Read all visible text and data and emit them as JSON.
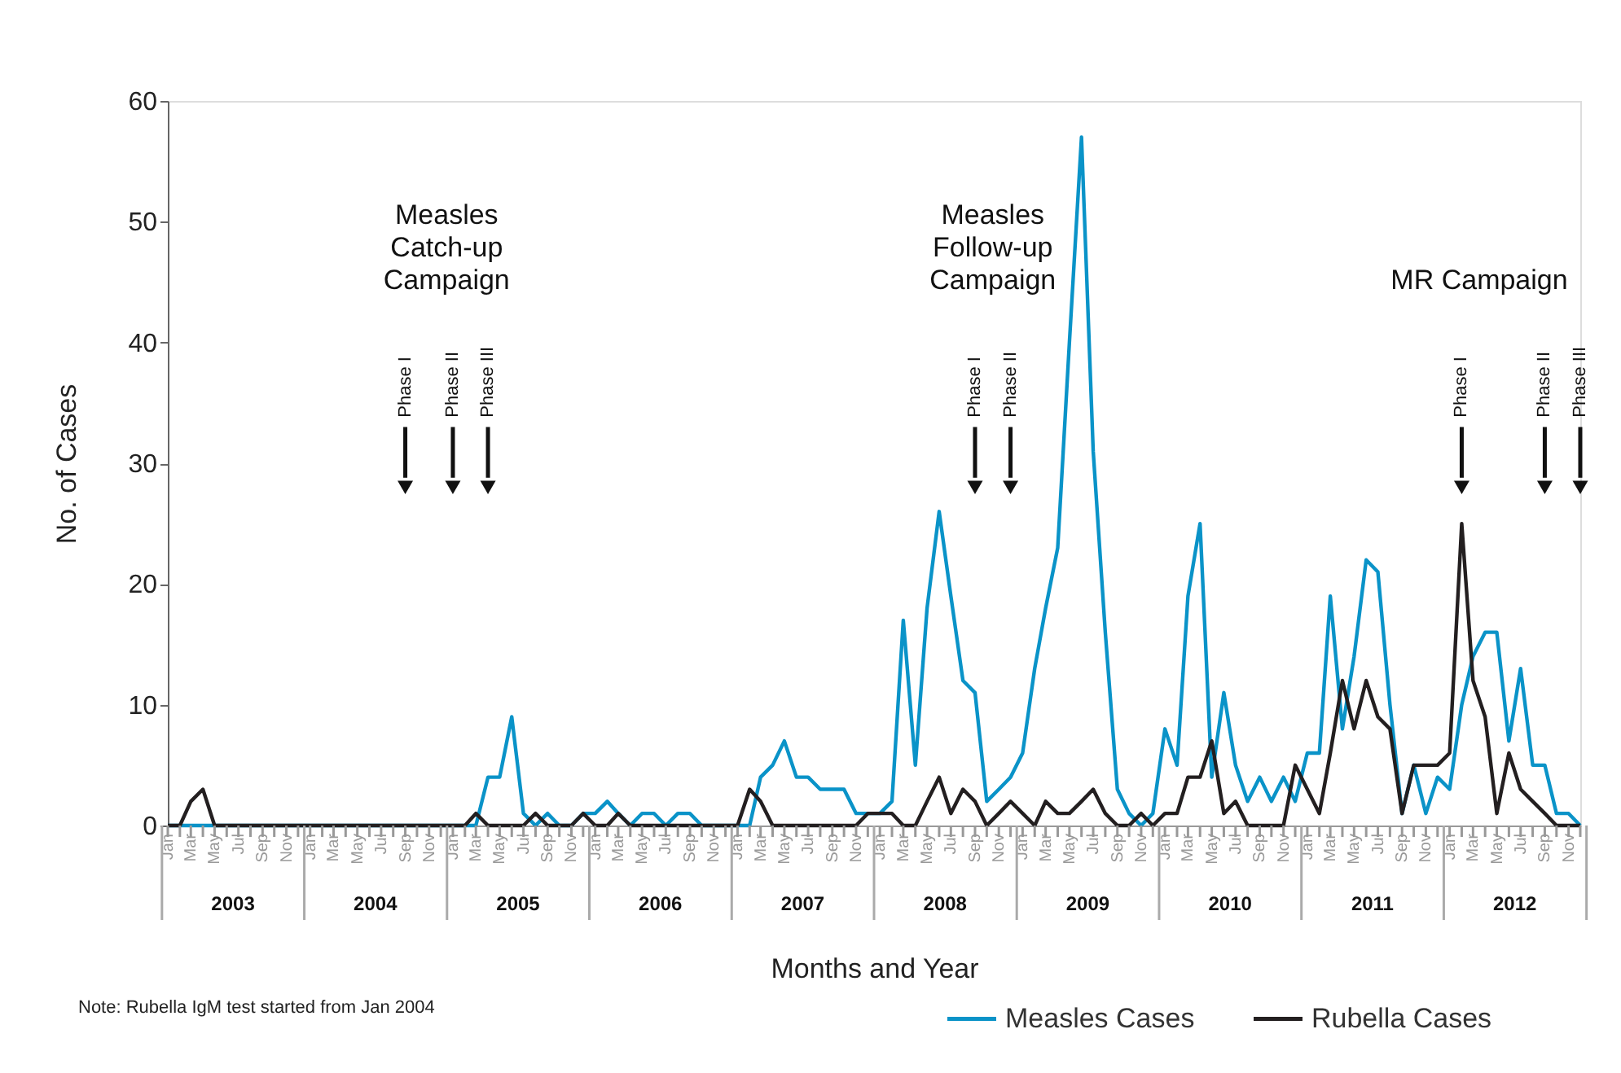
{
  "chart_data": {
    "type": "line",
    "xlabel": "Months and Year",
    "ylabel": "No. of Cases",
    "x": [
      "2003-01",
      "2003-02",
      "2003-03",
      "2003-04",
      "2003-05",
      "2003-06",
      "2003-07",
      "2003-08",
      "2003-09",
      "2003-10",
      "2003-11",
      "2003-12",
      "2004-01",
      "2004-02",
      "2004-03",
      "2004-04",
      "2004-05",
      "2004-06",
      "2004-07",
      "2004-08",
      "2004-09",
      "2004-10",
      "2004-11",
      "2004-12",
      "2005-01",
      "2005-02",
      "2005-03",
      "2005-04",
      "2005-05",
      "2005-06",
      "2005-07",
      "2005-08",
      "2005-09",
      "2005-10",
      "2005-11",
      "2005-12",
      "2006-01",
      "2006-02",
      "2006-03",
      "2006-04",
      "2006-05",
      "2006-06",
      "2006-07",
      "2006-08",
      "2006-09",
      "2006-10",
      "2006-11",
      "2006-12",
      "2007-01",
      "2007-02",
      "2007-03",
      "2007-04",
      "2007-05",
      "2007-06",
      "2007-07",
      "2007-08",
      "2007-09",
      "2007-10",
      "2007-11",
      "2007-12",
      "2008-01",
      "2008-02",
      "2008-03",
      "2008-04",
      "2008-05",
      "2008-06",
      "2008-07",
      "2008-08",
      "2008-09",
      "2008-10",
      "2008-11",
      "2008-12",
      "2009-01",
      "2009-02",
      "2009-03",
      "2009-04",
      "2009-05",
      "2009-06",
      "2009-07",
      "2009-08",
      "2009-09",
      "2009-10",
      "2009-11",
      "2009-12",
      "2010-01",
      "2010-02",
      "2010-03",
      "2010-04",
      "2010-05",
      "2010-06",
      "2010-07",
      "2010-08",
      "2010-09",
      "2010-10",
      "2010-11",
      "2010-12",
      "2011-01",
      "2011-02",
      "2011-03",
      "2011-04",
      "2011-05",
      "2011-06",
      "2011-07",
      "2011-08",
      "2011-09",
      "2011-10",
      "2011-11",
      "2011-12",
      "2012-01",
      "2012-02",
      "2012-03",
      "2012-04",
      "2012-05",
      "2012-06",
      "2012-07",
      "2012-08",
      "2012-09",
      "2012-10",
      "2012-11",
      "2012-12"
    ],
    "series": [
      {
        "name": "Measles Cases",
        "color": "#0a93c8",
        "values": [
          0,
          0,
          0,
          0,
          0,
          0,
          0,
          0,
          0,
          0,
          0,
          0,
          0,
          0,
          0,
          0,
          0,
          0,
          0,
          0,
          0,
          0,
          0,
          0,
          0,
          0,
          0,
          4,
          4,
          9,
          1,
          0,
          1,
          0,
          0,
          1,
          1,
          2,
          1,
          0,
          1,
          1,
          0,
          1,
          1,
          0,
          0,
          0,
          0,
          0,
          4,
          5,
          7,
          4,
          4,
          3,
          3,
          3,
          1,
          1,
          1,
          2,
          17,
          5,
          18,
          26,
          19,
          12,
          11,
          2,
          3,
          4,
          6,
          13,
          18,
          23,
          40,
          57,
          31,
          16,
          3,
          1,
          0,
          1,
          8,
          5,
          19,
          25,
          4,
          11,
          5,
          2,
          4,
          2,
          4,
          2,
          6,
          6,
          19,
          8,
          14,
          22,
          21,
          10,
          1,
          5,
          1,
          4,
          3,
          10,
          14,
          16,
          16,
          7,
          13,
          5,
          5,
          1,
          1,
          0
        ]
      },
      {
        "name": "Rubella Cases",
        "color": "#231f20",
        "values": [
          0,
          0,
          2,
          3,
          0,
          0,
          0,
          0,
          0,
          0,
          0,
          0,
          0,
          0,
          0,
          0,
          0,
          0,
          0,
          0,
          0,
          0,
          0,
          0,
          0,
          0,
          1,
          0,
          0,
          0,
          0,
          1,
          0,
          0,
          0,
          1,
          0,
          0,
          1,
          0,
          0,
          0,
          0,
          0,
          0,
          0,
          0,
          0,
          0,
          3,
          2,
          0,
          0,
          0,
          0,
          0,
          0,
          0,
          0,
          1,
          1,
          1,
          0,
          0,
          2,
          4,
          1,
          3,
          2,
          0,
          1,
          2,
          1,
          0,
          2,
          1,
          1,
          2,
          3,
          1,
          0,
          0,
          1,
          0,
          1,
          1,
          4,
          4,
          7,
          1,
          2,
          0,
          0,
          0,
          0,
          5,
          3,
          1,
          6,
          12,
          8,
          12,
          9,
          8,
          1,
          5,
          5,
          5,
          6,
          25,
          12,
          9,
          1,
          6,
          3,
          2,
          1,
          0,
          0,
          0
        ]
      }
    ],
    "xlim": [
      "2003-01",
      "2012-12"
    ],
    "xticks": [
      {
        "value": "2003-01",
        "label": "Jan"
      },
      {
        "value": "2003-02",
        "label": null
      },
      {
        "value": "2003-03",
        "label": "Mar"
      },
      {
        "value": "2003-04",
        "label": null
      },
      {
        "value": "2003-05",
        "label": "May"
      },
      {
        "value": "2003-06",
        "label": null
      },
      {
        "value": "2003-07",
        "label": "Jul"
      },
      {
        "value": "2003-08",
        "label": null
      },
      {
        "value": "2003-09",
        "label": "Sep"
      },
      {
        "value": "2003-10",
        "label": null
      },
      {
        "value": "2003-11",
        "label": "Nov"
      },
      {
        "value": "2003-12",
        "label": null
      },
      {
        "value": "2004-01",
        "label": "Jan"
      },
      {
        "value": "2004-02",
        "label": null
      },
      {
        "value": "2004-03",
        "label": "Mar"
      },
      {
        "value": "2004-04",
        "label": null
      },
      {
        "value": "2004-05",
        "label": "May"
      },
      {
        "value": "2004-06",
        "label": null
      },
      {
        "value": "2004-07",
        "label": "Jul"
      },
      {
        "value": "2004-08",
        "label": null
      },
      {
        "value": "2004-09",
        "label": "Sep"
      },
      {
        "value": "2004-10",
        "label": null
      },
      {
        "value": "2004-11",
        "label": "Nov"
      },
      {
        "value": "2004-12",
        "label": null
      },
      {
        "value": "2005-01",
        "label": "Jan"
      },
      {
        "value": "2005-02",
        "label": null
      },
      {
        "value": "2005-03",
        "label": "Mar"
      },
      {
        "value": "2005-04",
        "label": null
      },
      {
        "value": "2005-05",
        "label": "May"
      },
      {
        "value": "2005-06",
        "label": null
      },
      {
        "value": "2005-07",
        "label": "Jul"
      },
      {
        "value": "2005-08",
        "label": null
      },
      {
        "value": "2005-09",
        "label": "Sep"
      },
      {
        "value": "2005-10",
        "label": null
      },
      {
        "value": "2005-11",
        "label": "Nov"
      },
      {
        "value": "2005-12",
        "label": null
      },
      {
        "value": "2006-01",
        "label": "Jan"
      },
      {
        "value": "2006-02",
        "label": null
      },
      {
        "value": "2006-03",
        "label": "Mar"
      },
      {
        "value": "2006-04",
        "label": null
      },
      {
        "value": "2006-05",
        "label": "May"
      },
      {
        "value": "2006-06",
        "label": null
      },
      {
        "value": "2006-07",
        "label": "Jul"
      },
      {
        "value": "2006-08",
        "label": null
      },
      {
        "value": "2006-09",
        "label": "Sep"
      },
      {
        "value": "2006-10",
        "label": null
      },
      {
        "value": "2006-11",
        "label": "Nov"
      },
      {
        "value": "2006-12",
        "label": null
      },
      {
        "value": "2007-01",
        "label": "Jan"
      },
      {
        "value": "2007-02",
        "label": null
      },
      {
        "value": "2007-03",
        "label": "Mar"
      },
      {
        "value": "2007-04",
        "label": null
      },
      {
        "value": "2007-05",
        "label": "May"
      },
      {
        "value": "2007-06",
        "label": null
      },
      {
        "value": "2007-07",
        "label": "Jul"
      },
      {
        "value": "2007-08",
        "label": null
      },
      {
        "value": "2007-09",
        "label": "Sep"
      },
      {
        "value": "2007-10",
        "label": null
      },
      {
        "value": "2007-11",
        "label": "Nov"
      },
      {
        "value": "2007-12",
        "label": null
      },
      {
        "value": "2008-01",
        "label": "Jan"
      },
      {
        "value": "2008-02",
        "label": null
      },
      {
        "value": "2008-03",
        "label": "Mar"
      },
      {
        "value": "2008-04",
        "label": null
      },
      {
        "value": "2008-05",
        "label": "May"
      },
      {
        "value": "2008-06",
        "label": null
      },
      {
        "value": "2008-07",
        "label": "Jul"
      },
      {
        "value": "2008-08",
        "label": null
      },
      {
        "value": "2008-09",
        "label": "Sep"
      },
      {
        "value": "2008-10",
        "label": null
      },
      {
        "value": "2008-11",
        "label": "Nov"
      },
      {
        "value": "2008-12",
        "label": null
      },
      {
        "value": "2009-01",
        "label": "Jan"
      },
      {
        "value": "2009-02",
        "label": null
      },
      {
        "value": "2009-03",
        "label": "Mar"
      },
      {
        "value": "2009-04",
        "label": null
      },
      {
        "value": "2009-05",
        "label": "May"
      },
      {
        "value": "2009-06",
        "label": null
      },
      {
        "value": "2009-07",
        "label": "Jul"
      },
      {
        "value": "2009-08",
        "label": null
      },
      {
        "value": "2009-09",
        "label": "Sep"
      },
      {
        "value": "2009-10",
        "label": null
      },
      {
        "value": "2009-11",
        "label": "Nov"
      },
      {
        "value": "2009-12",
        "label": null
      },
      {
        "value": "2010-01",
        "label": "Jan"
      },
      {
        "value": "2010-02",
        "label": null
      },
      {
        "value": "2010-03",
        "label": "Mar"
      },
      {
        "value": "2010-04",
        "label": null
      },
      {
        "value": "2010-05",
        "label": "May"
      },
      {
        "value": "2010-06",
        "label": null
      },
      {
        "value": "2010-07",
        "label": "Jul"
      },
      {
        "value": "2010-08",
        "label": null
      },
      {
        "value": "2010-09",
        "label": "Sep"
      },
      {
        "value": "2010-10",
        "label": null
      },
      {
        "value": "2010-11",
        "label": "Nov"
      },
      {
        "value": "2010-12",
        "label": null
      },
      {
        "value": "2011-01",
        "label": "Jan"
      },
      {
        "value": "2011-02",
        "label": null
      },
      {
        "value": "2011-03",
        "label": "Mar"
      },
      {
        "value": "2011-04",
        "label": null
      },
      {
        "value": "2011-05",
        "label": "May"
      },
      {
        "value": "2011-06",
        "label": null
      },
      {
        "value": "2011-07",
        "label": "Jul"
      },
      {
        "value": "2011-08",
        "label": null
      },
      {
        "value": "2011-09",
        "label": "Sep"
      },
      {
        "value": "2011-10",
        "label": null
      },
      {
        "value": "2011-11",
        "label": "Nov"
      },
      {
        "value": "2011-12",
        "label": null
      },
      {
        "value": "2012-01",
        "label": "Jan"
      },
      {
        "value": "2012-02",
        "label": null
      },
      {
        "value": "2012-03",
        "label": "Mar"
      },
      {
        "value": "2012-04",
        "label": null
      },
      {
        "value": "2012-05",
        "label": "May"
      },
      {
        "value": "2012-06",
        "label": null
      },
      {
        "value": "2012-07",
        "label": "Jul"
      },
      {
        "value": "2012-08",
        "label": null
      },
      {
        "value": "2012-09",
        "label": "Sep"
      },
      {
        "value": "2012-10",
        "label": null
      },
      {
        "value": "2012-11",
        "label": "Nov"
      },
      {
        "value": "2012-12",
        "label": null
      }
    ],
    "ylim": [
      0,
      60
    ],
    "yticks": [
      0,
      10,
      20,
      30,
      40,
      50,
      60
    ],
    "legend": "bottom right",
    "annotations": [
      "Measles\nCatch-up\nCampaign",
      {
        "text": "Phase I",
        "x": "2004-09",
        "y": 28
      },
      {
        "text": "Phase II",
        "x": "2005-01",
        "y": 28
      },
      {
        "text": "Phase III",
        "x": "2005-04",
        "y": 28
      },
      "Measles\nFollow-up\nCampaign",
      {
        "text": "Phase I",
        "x": "2008-09",
        "y": 28
      },
      {
        "text": "Phase II",
        "x": "2008-12",
        "y": 28
      },
      "MR Campaign",
      {
        "text": "Phase I",
        "x": "2012-02",
        "y": 28
      },
      {
        "text": "Phase II",
        "x": "2012-09",
        "y": 28
      },
      {
        "text": "Phase III",
        "x": "2012-12",
        "y": 28
      },
      "2003",
      "2004",
      "2005",
      "2006",
      "2007",
      "2008",
      "2009",
      "2010",
      "2011",
      "2012",
      "Note: Rubella IgM test started from Jan 2004"
    ]
  }
}
